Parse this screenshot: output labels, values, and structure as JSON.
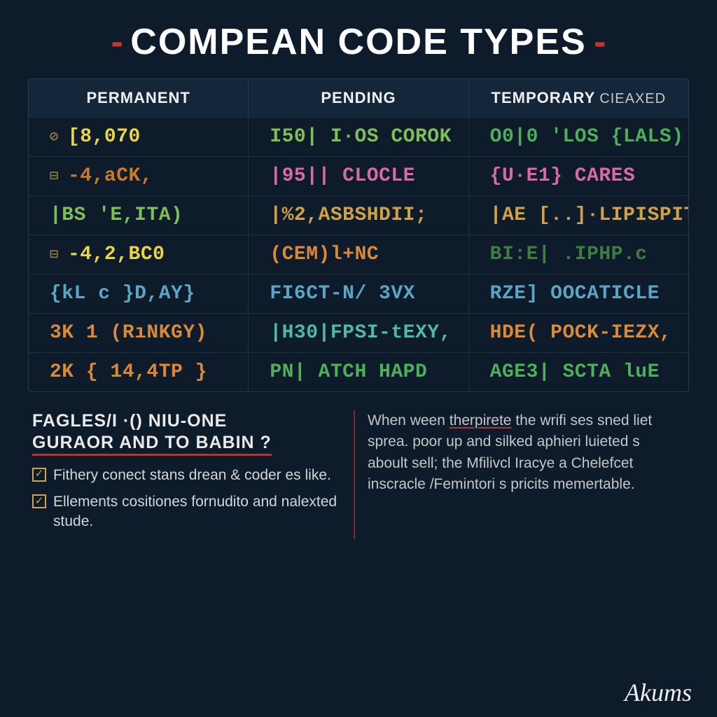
{
  "title": "COMPEAN CODE TYPES",
  "style": {
    "bg": "#0d1b2a",
    "title_color": "#ffffff",
    "dash_color": "#c0392b",
    "border_color": "#2b3a4a",
    "row_border": "#22303f",
    "header_bg": "#13263a",
    "title_fontsize": 52,
    "cell_fontsize": 28,
    "header_fontsize": 22
  },
  "table": {
    "columns": [
      {
        "label": "PERMANENT",
        "sub": ""
      },
      {
        "label": "PENDING",
        "sub": ""
      },
      {
        "label": "TEMPORARY",
        "sub": "CIEAXED"
      }
    ],
    "palette": {
      "yellow": "#e9d648",
      "orange_dk": "#c97a2a",
      "green_lt": "#7fbf5a",
      "green": "#4fae5a",
      "green_dim": "#3f7d45",
      "pink": "#d86aa5",
      "blue": "#5aa6c4",
      "teal": "#4fb8a6",
      "orange": "#d88a3a",
      "gold": "#cfa14a"
    },
    "rows": [
      {
        "c1": {
          "icon": "⊘",
          "text": "[8,070",
          "color": "yellow"
        },
        "c2": {
          "text": "I50| I·OS COROK",
          "color": "green_lt"
        },
        "c3": {
          "text": "O0|0 'LOS {LALS)",
          "color": "green"
        }
      },
      {
        "c1": {
          "icon": "⊟",
          "text": "-4,aCK,",
          "color": "orange_dk"
        },
        "c2": {
          "text": "|95|| CLOCLE",
          "color": "pink"
        },
        "c3": {
          "text": "{U·E1} CARES",
          "color": "pink"
        }
      },
      {
        "c1": {
          "icon": "",
          "text": "|BS 'E,ITA)",
          "color": "green_lt"
        },
        "c2": {
          "text": "|%2,ASBSHDII;",
          "color": "gold"
        },
        "c3": {
          "text": "|AE [..]·LIPISPIT",
          "color": "gold"
        }
      },
      {
        "c1": {
          "icon": "⊟",
          "text": "-4,2,BC0",
          "color": "yellow"
        },
        "c2": {
          "text": "(CEM)l+NC",
          "color": "orange"
        },
        "c3": {
          "text": "BI:E| .IPHP.c",
          "color": "green_dim"
        }
      },
      {
        "c1": {
          "icon": "",
          "text": "{kL c }D,AY}",
          "color": "blue"
        },
        "c2": {
          "text": "FI6CT-N/ 3VX",
          "color": "blue"
        },
        "c3": {
          "text": "RZE] OOCATICLE",
          "color": "blue"
        }
      },
      {
        "c1": {
          "icon": "",
          "text": "3K 1 (RıNKGY)",
          "color": "orange"
        },
        "c2": {
          "text": "|H30|FPSI-tEXY,",
          "color": "teal"
        },
        "c3": {
          "text": "HDE( POCK-IEZX,",
          "color": "orange"
        }
      },
      {
        "c1": {
          "icon": "",
          "text": "2K { 14,4TP }",
          "color": "orange"
        },
        "c2": {
          "text": "PN| ATCH HAPD",
          "color": "green"
        },
        "c3": {
          "text": "AGE3| SCTA luE",
          "color": "green"
        }
      }
    ]
  },
  "footer": {
    "left": {
      "heading_l1": "FAGLES/I ·() NIU-ONE",
      "heading_l2": "GURAOR AND TO BABIN ?",
      "items": [
        "Fithery conect stans drean & coder es like.",
        "Ellements cositiones fornudito and nalexted stude."
      ]
    },
    "right": {
      "text_before": "When ween ",
      "underlined": "therpirete",
      "text_after": " the wrifi ses sned liet sprea. poor up and silked aphieri luieted s aboult sell; the Mfilivcl Iracye a Chelefcet inscracle /Femintori s pricits memertable."
    }
  },
  "signature": "Akums"
}
